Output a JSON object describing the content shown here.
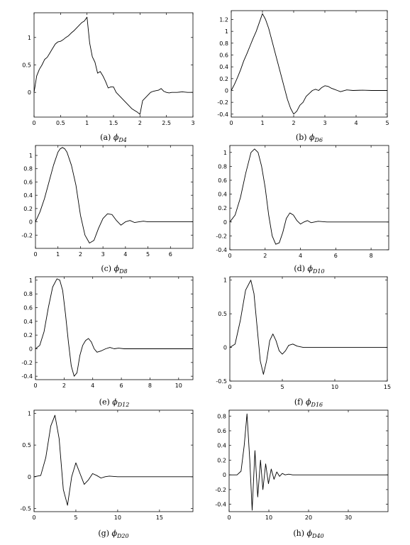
{
  "figure": {
    "colors": {
      "line": "#000000",
      "axes": "#000000",
      "background": "#ffffff"
    }
  },
  "chart_data": [
    {
      "type": "line",
      "label": "(a)",
      "symbol": "ϕ",
      "subscript": "D4",
      "xlim": [
        0,
        3
      ],
      "ylim": [
        -0.45,
        1.45
      ],
      "xticks": [
        0,
        0.5,
        1,
        1.5,
        2,
        2.5,
        3
      ],
      "xtick_labels": [
        "0",
        "0.5",
        "1",
        "1.5",
        "2",
        "2.5",
        "3"
      ],
      "yticks": [
        0,
        0.5,
        1
      ],
      "ytick_labels": [
        "0",
        "0.5",
        "1"
      ],
      "series": [
        {
          "x": [
            0,
            0.05,
            0.1,
            0.15,
            0.2,
            0.25,
            0.3,
            0.35,
            0.4,
            0.45,
            0.5,
            0.55,
            0.6,
            0.65,
            0.7,
            0.75,
            0.8,
            0.85,
            0.9,
            0.95,
            1.0,
            1.05,
            1.1,
            1.15,
            1.2,
            1.25,
            1.3,
            1.35,
            1.4,
            1.45,
            1.5,
            1.55,
            1.6,
            1.65,
            1.7,
            1.75,
            1.8,
            1.85,
            1.9,
            1.95,
            2.0,
            2.05,
            2.1,
            2.15,
            2.2,
            2.25,
            2.3,
            2.35,
            2.4,
            2.45,
            2.5,
            2.55,
            2.6,
            2.7,
            2.8,
            2.9,
            3.0
          ],
          "y": [
            0,
            0.3,
            0.42,
            0.5,
            0.6,
            0.64,
            0.72,
            0.8,
            0.88,
            0.92,
            0.93,
            0.96,
            1.0,
            1.03,
            1.08,
            1.12,
            1.17,
            1.22,
            1.27,
            1.3,
            1.37,
            0.9,
            0.65,
            0.55,
            0.35,
            0.38,
            0.3,
            0.2,
            0.08,
            0.1,
            0.1,
            0.0,
            -0.05,
            -0.1,
            -0.15,
            -0.2,
            -0.25,
            -0.3,
            -0.33,
            -0.36,
            -0.4,
            -0.15,
            -0.1,
            -0.05,
            0.0,
            0.02,
            0.03,
            0.04,
            0.07,
            0.02,
            0.0,
            -0.01,
            0.0,
            0.0,
            0.01,
            0.0,
            0.0
          ]
        }
      ]
    },
    {
      "type": "line",
      "label": "(b)",
      "symbol": "ϕ",
      "subscript": "D6",
      "xlim": [
        0,
        5
      ],
      "ylim": [
        -0.45,
        1.35
      ],
      "xticks": [
        0,
        1,
        2,
        3,
        4,
        5
      ],
      "xtick_labels": [
        "0",
        "1",
        "2",
        "3",
        "4",
        "5"
      ],
      "yticks": [
        -0.4,
        -0.2,
        0,
        0.2,
        0.4,
        0.6,
        0.8,
        1.0,
        1.2
      ],
      "ytick_labels": [
        "-0.4",
        "-0.2",
        "0",
        "0.2",
        "0.4",
        "0.6",
        "0.8",
        "1",
        "1.2"
      ],
      "series": [
        {
          "x": [
            0,
            0.1,
            0.2,
            0.3,
            0.4,
            0.5,
            0.6,
            0.7,
            0.8,
            0.9,
            1.0,
            1.1,
            1.2,
            1.3,
            1.4,
            1.5,
            1.6,
            1.7,
            1.8,
            1.9,
            2.0,
            2.1,
            2.2,
            2.3,
            2.4,
            2.5,
            2.6,
            2.7,
            2.8,
            2.9,
            3.0,
            3.1,
            3.2,
            3.3,
            3.4,
            3.5,
            3.7,
            3.9,
            4.2,
            4.5,
            5.0
          ],
          "y": [
            0,
            0.1,
            0.22,
            0.35,
            0.5,
            0.62,
            0.75,
            0.88,
            1.0,
            1.15,
            1.3,
            1.2,
            1.05,
            0.85,
            0.65,
            0.45,
            0.25,
            0.05,
            -0.15,
            -0.3,
            -0.4,
            -0.35,
            -0.25,
            -0.2,
            -0.1,
            -0.05,
            0.0,
            0.02,
            0.0,
            0.05,
            0.08,
            0.07,
            0.04,
            0.02,
            0.0,
            -0.02,
            0.01,
            0.0,
            0.005,
            0.0,
            0.0
          ]
        }
      ]
    },
    {
      "type": "line",
      "label": "(c)",
      "symbol": "ϕ",
      "subscript": "D8",
      "xlim": [
        0,
        7
      ],
      "ylim": [
        -0.4,
        1.15
      ],
      "xticks": [
        0,
        1,
        2,
        3,
        4,
        5,
        6
      ],
      "xtick_labels": [
        "0",
        "1",
        "2",
        "3",
        "4",
        "5",
        "6"
      ],
      "yticks": [
        -0.2,
        0,
        0.2,
        0.4,
        0.6,
        0.8,
        1.0
      ],
      "ytick_labels": [
        "-0.2",
        "0",
        "0.2",
        "0.4",
        "0.6",
        "0.8",
        "1"
      ],
      "series": [
        {
          "x": [
            0,
            0.2,
            0.4,
            0.6,
            0.8,
            1.0,
            1.1,
            1.2,
            1.3,
            1.4,
            1.6,
            1.8,
            2.0,
            2.2,
            2.4,
            2.6,
            2.8,
            3.0,
            3.2,
            3.4,
            3.6,
            3.8,
            4.0,
            4.2,
            4.4,
            4.6,
            4.8,
            5.0,
            5.5,
            6.0,
            7.0
          ],
          "y": [
            0,
            0.15,
            0.35,
            0.6,
            0.85,
            1.05,
            1.1,
            1.12,
            1.1,
            1.05,
            0.85,
            0.55,
            0.1,
            -0.2,
            -0.32,
            -0.28,
            -0.1,
            0.05,
            0.12,
            0.11,
            0.02,
            -0.05,
            0.0,
            0.02,
            -0.01,
            0.0,
            0.01,
            0.0,
            0.0,
            0.0,
            0.0
          ]
        }
      ]
    },
    {
      "type": "line",
      "label": "(d)",
      "symbol": "ϕ",
      "subscript": "D10",
      "xlim": [
        0,
        9
      ],
      "ylim": [
        -0.4,
        1.1
      ],
      "xticks": [
        0,
        2,
        4,
        6,
        8
      ],
      "xtick_labels": [
        "0",
        "2",
        "4",
        "6",
        "8"
      ],
      "yticks": [
        -0.4,
        -0.2,
        0,
        0.2,
        0.4,
        0.6,
        0.8,
        1.0
      ],
      "ytick_labels": [
        "-0.4",
        "-0.2",
        "0",
        "0.2",
        "0.4",
        "0.6",
        "0.8",
        "1"
      ],
      "series": [
        {
          "x": [
            0,
            0.3,
            0.6,
            0.9,
            1.2,
            1.4,
            1.6,
            1.8,
            2.0,
            2.2,
            2.4,
            2.6,
            2.8,
            3.0,
            3.2,
            3.4,
            3.6,
            3.8,
            4.0,
            4.2,
            4.4,
            4.6,
            4.8,
            5.0,
            5.5,
            6.0,
            7.0,
            8.0,
            9.0
          ],
          "y": [
            0,
            0.1,
            0.35,
            0.7,
            1.0,
            1.05,
            1.0,
            0.8,
            0.5,
            0.1,
            -0.2,
            -0.32,
            -0.3,
            -0.15,
            0.05,
            0.13,
            0.1,
            0.02,
            -0.03,
            0.0,
            0.02,
            -0.01,
            0.0,
            0.01,
            0.0,
            0.0,
            0.0,
            0.0,
            0.0
          ]
        }
      ]
    },
    {
      "type": "line",
      "label": "(e)",
      "symbol": "ϕ",
      "subscript": "D12",
      "xlim": [
        0,
        11
      ],
      "ylim": [
        -0.45,
        1.05
      ],
      "xticks": [
        0,
        2,
        4,
        6,
        8,
        10
      ],
      "xtick_labels": [
        "0",
        "2",
        "4",
        "6",
        "8",
        "10"
      ],
      "yticks": [
        -0.4,
        -0.2,
        0,
        0.2,
        0.4,
        0.6,
        0.8,
        1.0
      ],
      "ytick_labels": [
        "-0.4",
        "-0.2",
        "0",
        "0.2",
        "0.4",
        "0.6",
        "0.8",
        "1"
      ],
      "series": [
        {
          "x": [
            0,
            0.3,
            0.6,
            0.9,
            1.2,
            1.5,
            1.7,
            1.9,
            2.1,
            2.3,
            2.5,
            2.7,
            2.9,
            3.1,
            3.3,
            3.5,
            3.7,
            3.9,
            4.1,
            4.3,
            4.6,
            4.9,
            5.2,
            5.5,
            5.8,
            6.2,
            7.0,
            8.0,
            11.0
          ],
          "y": [
            0,
            0.05,
            0.25,
            0.6,
            0.9,
            1.02,
            1.0,
            0.85,
            0.5,
            0.1,
            -0.25,
            -0.4,
            -0.35,
            -0.1,
            0.05,
            0.12,
            0.15,
            0.1,
            0.0,
            -0.05,
            -0.03,
            0.0,
            0.02,
            0.0,
            0.01,
            0.0,
            0.0,
            0.0,
            0.0
          ]
        }
      ]
    },
    {
      "type": "line",
      "label": "(f)",
      "symbol": "ϕ",
      "subscript": "D16",
      "xlim": [
        0,
        15
      ],
      "ylim": [
        -0.5,
        1.05
      ],
      "xticks": [
        0,
        5,
        10,
        15
      ],
      "xtick_labels": [
        "0",
        "5",
        "10",
        "15"
      ],
      "yticks": [
        -0.5,
        0,
        0.5,
        1.0
      ],
      "ytick_labels": [
        "-0.5",
        "0",
        "0.5",
        "1"
      ],
      "series": [
        {
          "x": [
            0,
            0.5,
            1.0,
            1.5,
            2.0,
            2.3,
            2.6,
            2.9,
            3.2,
            3.5,
            3.8,
            4.1,
            4.4,
            4.7,
            5.0,
            5.3,
            5.6,
            6.0,
            6.4,
            7.0,
            8.0,
            9.0,
            15.0
          ],
          "y": [
            0,
            0.05,
            0.4,
            0.85,
            1.0,
            0.8,
            0.3,
            -0.2,
            -0.4,
            -0.2,
            0.1,
            0.2,
            0.1,
            -0.05,
            -0.1,
            -0.05,
            0.03,
            0.05,
            0.02,
            0.0,
            0.0,
            0.0,
            0.0
          ]
        }
      ]
    },
    {
      "type": "line",
      "label": "(g)",
      "symbol": "ϕ",
      "subscript": "D20",
      "xlim": [
        0,
        19
      ],
      "ylim": [
        -0.55,
        1.05
      ],
      "xticks": [
        0,
        5,
        10,
        15
      ],
      "xtick_labels": [
        "0",
        "5",
        "10",
        "15"
      ],
      "yticks": [
        -0.5,
        0,
        0.5,
        1.0
      ],
      "ytick_labels": [
        "-0.5",
        "0",
        "0.5",
        "1"
      ],
      "series": [
        {
          "x": [
            0,
            0.8,
            1.4,
            2.0,
            2.5,
            3.0,
            3.5,
            4.0,
            4.5,
            5.0,
            5.5,
            6.0,
            6.5,
            7.0,
            7.5,
            8.0,
            8.5,
            9.0,
            10.0,
            11.0,
            19.0
          ],
          "y": [
            0,
            0.02,
            0.3,
            0.8,
            0.97,
            0.6,
            -0.2,
            -0.45,
            0.0,
            0.22,
            0.05,
            -0.12,
            -0.05,
            0.05,
            0.02,
            -0.02,
            0.0,
            0.01,
            0.0,
            0.0,
            0.0
          ]
        }
      ]
    },
    {
      "type": "line",
      "label": "(h)",
      "symbol": "ϕ",
      "subscript": "D40",
      "xlim": [
        0,
        40
      ],
      "ylim": [
        -0.5,
        0.88
      ],
      "xticks": [
        0,
        10,
        20,
        30
      ],
      "xtick_labels": [
        "0",
        "10",
        "20",
        "30"
      ],
      "yticks": [
        -0.4,
        -0.2,
        0,
        0.2,
        0.4,
        0.6,
        0.8
      ],
      "ytick_labels": [
        "-0.4",
        "-0.2",
        "0",
        "0.2",
        "0.4",
        "0.6",
        "0.8"
      ],
      "series": [
        {
          "x": [
            0,
            2.0,
            3.0,
            3.8,
            4.5,
            5.2,
            5.8,
            6.5,
            7.2,
            7.9,
            8.5,
            9.2,
            9.9,
            10.6,
            11.3,
            12.0,
            12.7,
            13.4,
            14.1,
            15.0,
            16.0,
            18.0,
            40.0
          ],
          "y": [
            0,
            0.0,
            0.05,
            0.4,
            0.83,
            0.2,
            -0.48,
            0.33,
            -0.3,
            0.2,
            -0.2,
            0.15,
            -0.12,
            0.08,
            -0.06,
            0.04,
            -0.02,
            0.02,
            0.0,
            0.01,
            0.0,
            0.0,
            0.0
          ]
        }
      ]
    }
  ]
}
